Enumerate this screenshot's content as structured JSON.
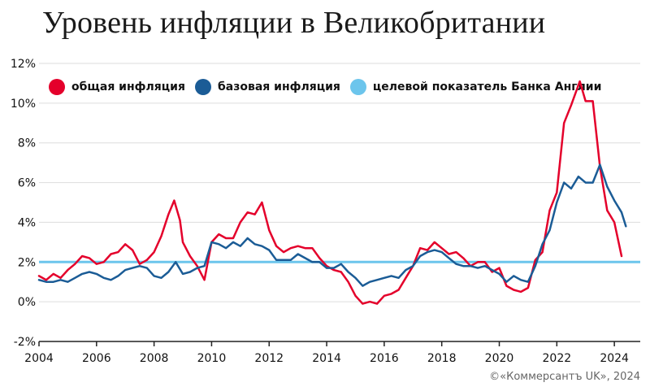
{
  "chart_data": {
    "type": "line",
    "title": "Уровень инфляции в Великобритании",
    "xlabel": "",
    "ylabel": "",
    "xlim": [
      2004.0,
      2024.9
    ],
    "ylim": [
      -2,
      12
    ],
    "x_ticks": [
      2004,
      2006,
      2008,
      2010,
      2012,
      2014,
      2016,
      2018,
      2020,
      2022,
      2024
    ],
    "y_ticks": [
      -2,
      0,
      2,
      4,
      6,
      8,
      10,
      12
    ],
    "y_tick_labels": [
      "-2%",
      "0%",
      "2%",
      "4%",
      "6%",
      "8%",
      "10%",
      "12%"
    ],
    "grid": "horizontal",
    "legend_position": "top-left",
    "series": [
      {
        "name": "общая инфляция",
        "color": "#e4002b",
        "points": [
          [
            2004.0,
            1.3
          ],
          [
            2004.25,
            1.1
          ],
          [
            2004.5,
            1.4
          ],
          [
            2004.75,
            1.2
          ],
          [
            2005.0,
            1.6
          ],
          [
            2005.25,
            1.9
          ],
          [
            2005.5,
            2.3
          ],
          [
            2005.75,
            2.2
          ],
          [
            2006.0,
            1.9
          ],
          [
            2006.25,
            2.0
          ],
          [
            2006.5,
            2.4
          ],
          [
            2006.75,
            2.5
          ],
          [
            2007.0,
            2.9
          ],
          [
            2007.25,
            2.6
          ],
          [
            2007.5,
            1.9
          ],
          [
            2007.75,
            2.1
          ],
          [
            2008.0,
            2.5
          ],
          [
            2008.25,
            3.3
          ],
          [
            2008.5,
            4.4
          ],
          [
            2008.7,
            5.1
          ],
          [
            2008.9,
            4.1
          ],
          [
            2009.0,
            3.0
          ],
          [
            2009.25,
            2.3
          ],
          [
            2009.5,
            1.8
          ],
          [
            2009.75,
            1.1
          ],
          [
            2010.0,
            3.0
          ],
          [
            2010.25,
            3.4
          ],
          [
            2010.5,
            3.2
          ],
          [
            2010.75,
            3.2
          ],
          [
            2011.0,
            4.0
          ],
          [
            2011.25,
            4.5
          ],
          [
            2011.5,
            4.4
          ],
          [
            2011.75,
            5.0
          ],
          [
            2012.0,
            3.6
          ],
          [
            2012.25,
            2.8
          ],
          [
            2012.5,
            2.5
          ],
          [
            2012.75,
            2.7
          ],
          [
            2013.0,
            2.8
          ],
          [
            2013.25,
            2.7
          ],
          [
            2013.5,
            2.7
          ],
          [
            2013.75,
            2.2
          ],
          [
            2014.0,
            1.8
          ],
          [
            2014.25,
            1.6
          ],
          [
            2014.5,
            1.5
          ],
          [
            2014.75,
            1.0
          ],
          [
            2015.0,
            0.3
          ],
          [
            2015.25,
            -0.1
          ],
          [
            2015.5,
            0.0
          ],
          [
            2015.75,
            -0.1
          ],
          [
            2016.0,
            0.3
          ],
          [
            2016.25,
            0.4
          ],
          [
            2016.5,
            0.6
          ],
          [
            2016.75,
            1.2
          ],
          [
            2017.0,
            1.8
          ],
          [
            2017.25,
            2.7
          ],
          [
            2017.5,
            2.6
          ],
          [
            2017.75,
            3.0
          ],
          [
            2018.0,
            2.7
          ],
          [
            2018.25,
            2.4
          ],
          [
            2018.5,
            2.5
          ],
          [
            2018.75,
            2.2
          ],
          [
            2019.0,
            1.8
          ],
          [
            2019.25,
            2.0
          ],
          [
            2019.5,
            2.0
          ],
          [
            2019.75,
            1.5
          ],
          [
            2020.0,
            1.7
          ],
          [
            2020.25,
            0.8
          ],
          [
            2020.5,
            0.6
          ],
          [
            2020.75,
            0.5
          ],
          [
            2021.0,
            0.7
          ],
          [
            2021.25,
            2.1
          ],
          [
            2021.5,
            2.5
          ],
          [
            2021.75,
            4.6
          ],
          [
            2022.0,
            5.5
          ],
          [
            2022.25,
            9.0
          ],
          [
            2022.5,
            9.9
          ],
          [
            2022.8,
            11.1
          ],
          [
            2023.0,
            10.1
          ],
          [
            2023.25,
            10.1
          ],
          [
            2023.5,
            6.8
          ],
          [
            2023.75,
            4.6
          ],
          [
            2024.0,
            4.0
          ],
          [
            2024.25,
            2.3
          ]
        ]
      },
      {
        "name": "базовая инфляция",
        "color": "#1b5c96",
        "points": [
          [
            2004.0,
            1.1
          ],
          [
            2004.25,
            1.0
          ],
          [
            2004.5,
            1.0
          ],
          [
            2004.75,
            1.1
          ],
          [
            2005.0,
            1.0
          ],
          [
            2005.25,
            1.2
          ],
          [
            2005.5,
            1.4
          ],
          [
            2005.75,
            1.5
          ],
          [
            2006.0,
            1.4
          ],
          [
            2006.25,
            1.2
          ],
          [
            2006.5,
            1.1
          ],
          [
            2006.75,
            1.3
          ],
          [
            2007.0,
            1.6
          ],
          [
            2007.25,
            1.7
          ],
          [
            2007.5,
            1.8
          ],
          [
            2007.75,
            1.7
          ],
          [
            2008.0,
            1.3
          ],
          [
            2008.25,
            1.2
          ],
          [
            2008.5,
            1.5
          ],
          [
            2008.75,
            2.0
          ],
          [
            2009.0,
            1.4
          ],
          [
            2009.25,
            1.5
          ],
          [
            2009.5,
            1.7
          ],
          [
            2009.75,
            1.8
          ],
          [
            2010.0,
            3.0
          ],
          [
            2010.25,
            2.9
          ],
          [
            2010.5,
            2.7
          ],
          [
            2010.75,
            3.0
          ],
          [
            2011.0,
            2.8
          ],
          [
            2011.25,
            3.2
          ],
          [
            2011.5,
            2.9
          ],
          [
            2011.75,
            2.8
          ],
          [
            2012.0,
            2.6
          ],
          [
            2012.25,
            2.1
          ],
          [
            2012.5,
            2.1
          ],
          [
            2012.75,
            2.1
          ],
          [
            2013.0,
            2.4
          ],
          [
            2013.25,
            2.2
          ],
          [
            2013.5,
            2.0
          ],
          [
            2013.75,
            2.0
          ],
          [
            2014.0,
            1.7
          ],
          [
            2014.25,
            1.7
          ],
          [
            2014.5,
            1.9
          ],
          [
            2014.75,
            1.5
          ],
          [
            2015.0,
            1.2
          ],
          [
            2015.25,
            0.8
          ],
          [
            2015.5,
            1.0
          ],
          [
            2015.75,
            1.1
          ],
          [
            2016.0,
            1.2
          ],
          [
            2016.25,
            1.3
          ],
          [
            2016.5,
            1.2
          ],
          [
            2016.75,
            1.6
          ],
          [
            2017.0,
            1.8
          ],
          [
            2017.25,
            2.3
          ],
          [
            2017.5,
            2.5
          ],
          [
            2017.75,
            2.6
          ],
          [
            2018.0,
            2.5
          ],
          [
            2018.25,
            2.2
          ],
          [
            2018.5,
            1.9
          ],
          [
            2018.75,
            1.8
          ],
          [
            2019.0,
            1.8
          ],
          [
            2019.25,
            1.7
          ],
          [
            2019.5,
            1.8
          ],
          [
            2019.75,
            1.6
          ],
          [
            2020.0,
            1.4
          ],
          [
            2020.25,
            1.0
          ],
          [
            2020.5,
            1.3
          ],
          [
            2020.75,
            1.1
          ],
          [
            2021.0,
            1.0
          ],
          [
            2021.25,
            1.8
          ],
          [
            2021.5,
            2.9
          ],
          [
            2021.75,
            3.6
          ],
          [
            2022.0,
            5.0
          ],
          [
            2022.25,
            6.0
          ],
          [
            2022.5,
            5.7
          ],
          [
            2022.75,
            6.3
          ],
          [
            2023.0,
            6.0
          ],
          [
            2023.25,
            6.0
          ],
          [
            2023.5,
            6.9
          ],
          [
            2023.75,
            5.8
          ],
          [
            2024.0,
            5.1
          ],
          [
            2024.25,
            4.5
          ],
          [
            2024.4,
            3.8
          ]
        ]
      }
    ],
    "reference_lines": [
      {
        "name": "целевой показатель Банка Англии",
        "y": 2,
        "color": "#6cc5ec"
      }
    ],
    "axis_color": "#222222",
    "grid_color": "#dddddd"
  },
  "credit": "©«Коммерсантъ UK», 2024"
}
